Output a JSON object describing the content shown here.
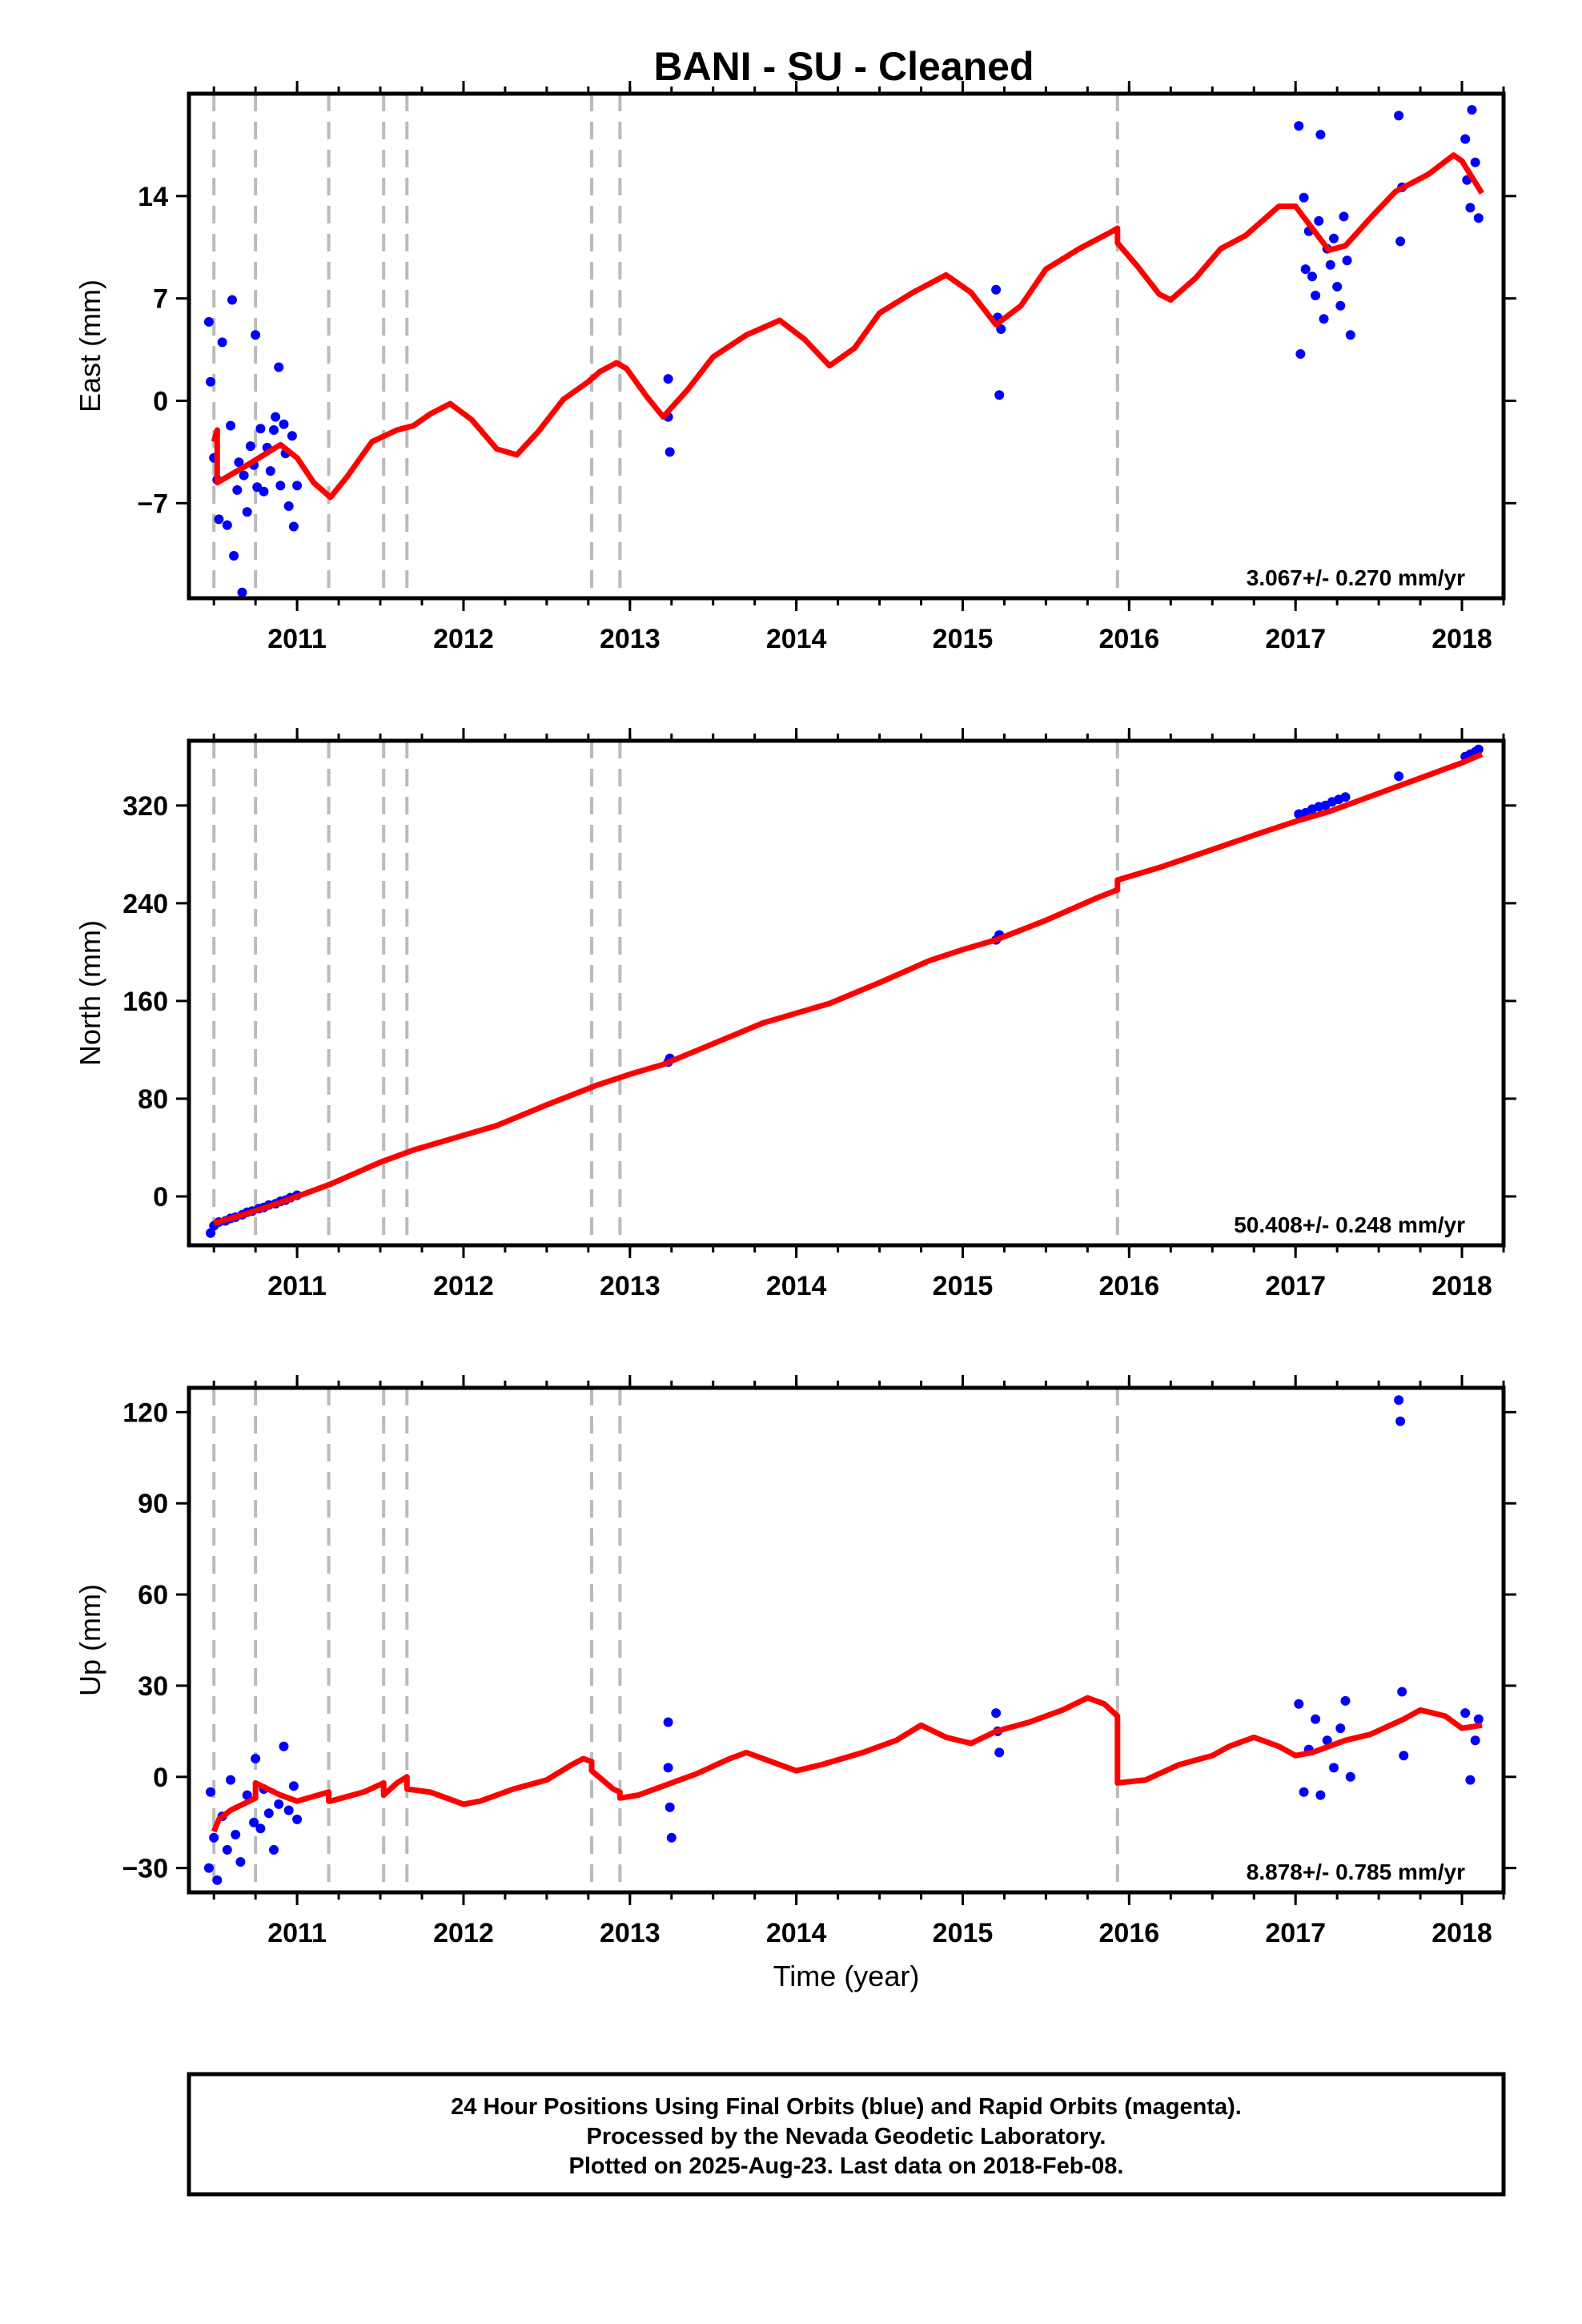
{
  "title": "BANI  - SU - Cleaned",
  "xlabel": "Time (year)",
  "footer": [
    "24 Hour Positions Using Final Orbits (blue) and Rapid Orbits (magenta).",
    "Processed by the Nevada Geodetic Laboratory.",
    "Plotted on 2025-Aug-23. Last data on 2018-Feb-08."
  ],
  "colors": {
    "final_orbits": "#0000ff",
    "model": "#ff0000",
    "offsets": "#bbbbbb",
    "frame": "#000000"
  },
  "chart_data": [
    {
      "type": "scatter",
      "name": "east",
      "ylabel": "East (mm)",
      "rate": "3.067+/- 0.270 mm/yr",
      "xlim": [
        2010.35,
        2018.25
      ],
      "ylim": [
        -13.5,
        21
      ],
      "yticks": [
        -7,
        0,
        7,
        14
      ],
      "xticks": [
        2011,
        2012,
        2013,
        2014,
        2015,
        2016,
        2017,
        2018
      ],
      "offset_lines": [
        2010.5,
        2010.75,
        2011.19,
        2011.52,
        2011.66,
        2012.77,
        2012.94,
        2015.93
      ],
      "model": [
        [
          2010.5,
          -2.8
        ],
        [
          2010.52,
          -2.0
        ],
        [
          2010.52,
          -5.6
        ],
        [
          2010.7,
          -4.4
        ],
        [
          2010.9,
          -3.0
        ],
        [
          2011.0,
          -3.9
        ],
        [
          2011.1,
          -5.6
        ],
        [
          2011.2,
          -6.6
        ],
        [
          2011.3,
          -5.2
        ],
        [
          2011.45,
          -2.8
        ],
        [
          2011.6,
          -2.0
        ],
        [
          2011.7,
          -1.7
        ],
        [
          2011.8,
          -0.9
        ],
        [
          2011.92,
          -0.2
        ],
        [
          2012.05,
          -1.3
        ],
        [
          2012.2,
          -3.3
        ],
        [
          2012.32,
          -3.7
        ],
        [
          2012.45,
          -2.1
        ],
        [
          2012.6,
          0.1
        ],
        [
          2012.75,
          1.3
        ],
        [
          2012.82,
          2.0
        ],
        [
          2012.92,
          2.6
        ],
        [
          2012.98,
          2.2
        ],
        [
          2013.1,
          0.3
        ],
        [
          2013.2,
          -1.1
        ],
        [
          2013.35,
          0.8
        ],
        [
          2013.5,
          3.0
        ],
        [
          2013.7,
          4.5
        ],
        [
          2013.9,
          5.5
        ],
        [
          2014.05,
          4.2
        ],
        [
          2014.2,
          2.4
        ],
        [
          2014.35,
          3.6
        ],
        [
          2014.5,
          6.0
        ],
        [
          2014.7,
          7.4
        ],
        [
          2014.9,
          8.6
        ],
        [
          2015.05,
          7.4
        ],
        [
          2015.2,
          5.2
        ],
        [
          2015.35,
          6.5
        ],
        [
          2015.5,
          9.0
        ],
        [
          2015.7,
          10.4
        ],
        [
          2015.9,
          11.6
        ],
        [
          2015.93,
          11.8
        ],
        [
          2015.93,
          10.8
        ],
        [
          2016.05,
          9.2
        ],
        [
          2016.18,
          7.3
        ],
        [
          2016.25,
          6.9
        ],
        [
          2016.4,
          8.4
        ],
        [
          2016.55,
          10.4
        ],
        [
          2016.7,
          11.3
        ],
        [
          2016.9,
          13.3
        ],
        [
          2017.0,
          13.3
        ],
        [
          2017.12,
          11.5
        ],
        [
          2017.2,
          10.3
        ],
        [
          2017.3,
          10.6
        ],
        [
          2017.45,
          12.5
        ],
        [
          2017.6,
          14.3
        ],
        [
          2017.8,
          15.5
        ],
        [
          2017.95,
          16.8
        ],
        [
          2018.0,
          16.4
        ],
        [
          2018.12,
          14.2
        ]
      ],
      "points": [
        [
          2010.47,
          5.4
        ],
        [
          2010.48,
          1.3
        ],
        [
          2010.5,
          -3.9
        ],
        [
          2010.52,
          -5.4
        ],
        [
          2010.53,
          -8.1
        ],
        [
          2010.55,
          4.0
        ],
        [
          2010.58,
          -8.5
        ],
        [
          2010.6,
          -1.7
        ],
        [
          2010.61,
          6.9
        ],
        [
          2010.62,
          -10.6
        ],
        [
          2010.64,
          -6.1
        ],
        [
          2010.65,
          -4.2
        ],
        [
          2010.67,
          -13.1
        ],
        [
          2010.68,
          -5.1
        ],
        [
          2010.7,
          -7.6
        ],
        [
          2010.72,
          -3.1
        ],
        [
          2010.74,
          -4.4
        ],
        [
          2010.75,
          4.5
        ],
        [
          2010.76,
          -5.9
        ],
        [
          2010.78,
          -1.9
        ],
        [
          2010.8,
          -6.2
        ],
        [
          2010.82,
          -3.2
        ],
        [
          2010.84,
          -4.8
        ],
        [
          2010.86,
          -2.0
        ],
        [
          2010.87,
          -1.1
        ],
        [
          2010.89,
          2.3
        ],
        [
          2010.9,
          -5.8
        ],
        [
          2010.92,
          -1.6
        ],
        [
          2010.93,
          -3.6
        ],
        [
          2010.95,
          -7.2
        ],
        [
          2010.97,
          -2.4
        ],
        [
          2010.98,
          -8.6
        ],
        [
          2011.0,
          -5.8
        ],
        [
          2013.23,
          1.5
        ],
        [
          2013.23,
          -1.1
        ],
        [
          2013.24,
          -3.5
        ],
        [
          2015.2,
          7.6
        ],
        [
          2015.21,
          5.7
        ],
        [
          2015.22,
          0.4
        ],
        [
          2015.23,
          4.9
        ],
        [
          2017.02,
          18.8
        ],
        [
          2017.03,
          3.2
        ],
        [
          2017.05,
          13.9
        ],
        [
          2017.06,
          9.0
        ],
        [
          2017.08,
          11.6
        ],
        [
          2017.1,
          8.5
        ],
        [
          2017.12,
          7.2
        ],
        [
          2017.14,
          12.3
        ],
        [
          2017.15,
          18.2
        ],
        [
          2017.17,
          5.6
        ],
        [
          2017.19,
          10.4
        ],
        [
          2017.21,
          9.3
        ],
        [
          2017.23,
          11.1
        ],
        [
          2017.25,
          7.8
        ],
        [
          2017.27,
          6.5
        ],
        [
          2017.29,
          12.6
        ],
        [
          2017.31,
          9.6
        ],
        [
          2017.33,
          4.5
        ],
        [
          2017.62,
          19.5
        ],
        [
          2017.63,
          10.9
        ],
        [
          2017.64,
          14.6
        ],
        [
          2018.02,
          17.9
        ],
        [
          2018.03,
          15.1
        ],
        [
          2018.05,
          13.2
        ],
        [
          2018.06,
          19.9
        ],
        [
          2018.08,
          16.3
        ],
        [
          2018.1,
          12.5
        ]
      ]
    },
    {
      "type": "scatter",
      "name": "north",
      "ylabel": "North (mm)",
      "rate": "50.408+/- 0.248 mm/yr",
      "xlim": [
        2010.35,
        2018.25
      ],
      "ylim": [
        -40,
        373
      ],
      "yticks": [
        0,
        80,
        160,
        240,
        320
      ],
      "xticks": [
        2011,
        2012,
        2013,
        2014,
        2015,
        2016,
        2017,
        2018
      ],
      "offset_lines": [
        2010.5,
        2010.75,
        2011.19,
        2011.52,
        2011.66,
        2012.77,
        2012.94,
        2015.93
      ],
      "model": [
        [
          2010.5,
          -22
        ],
        [
          2010.7,
          -14
        ],
        [
          2010.9,
          -5
        ],
        [
          2011.0,
          0
        ],
        [
          2011.2,
          10
        ],
        [
          2011.5,
          28
        ],
        [
          2011.7,
          38
        ],
        [
          2012.0,
          50
        ],
        [
          2012.2,
          58
        ],
        [
          2012.5,
          75
        ],
        [
          2012.8,
          91
        ],
        [
          2013.0,
          100
        ],
        [
          2013.2,
          108
        ],
        [
          2013.5,
          125
        ],
        [
          2013.8,
          142
        ],
        [
          2014.0,
          150
        ],
        [
          2014.2,
          158
        ],
        [
          2014.5,
          175
        ],
        [
          2014.8,
          193
        ],
        [
          2015.0,
          202
        ],
        [
          2015.2,
          210
        ],
        [
          2015.5,
          226
        ],
        [
          2015.8,
          244
        ],
        [
          2015.93,
          251
        ],
        [
          2015.93,
          259
        ],
        [
          2016.2,
          270
        ],
        [
          2016.5,
          284
        ],
        [
          2016.8,
          298
        ],
        [
          2017.0,
          307
        ],
        [
          2017.2,
          315
        ],
        [
          2017.5,
          330
        ],
        [
          2017.8,
          345
        ],
        [
          2018.0,
          355
        ],
        [
          2018.12,
          362
        ]
      ],
      "points": [
        [
          2010.48,
          -30
        ],
        [
          2010.5,
          -24
        ],
        [
          2010.53,
          -21
        ],
        [
          2010.57,
          -20
        ],
        [
          2010.6,
          -18
        ],
        [
          2010.63,
          -17
        ],
        [
          2010.67,
          -15
        ],
        [
          2010.7,
          -13
        ],
        [
          2010.73,
          -12
        ],
        [
          2010.77,
          -10
        ],
        [
          2010.8,
          -9
        ],
        [
          2010.83,
          -7
        ],
        [
          2010.87,
          -6
        ],
        [
          2010.9,
          -4
        ],
        [
          2010.93,
          -3
        ],
        [
          2010.96,
          -1
        ],
        [
          2011.0,
          1
        ],
        [
          2013.23,
          110
        ],
        [
          2013.24,
          113
        ],
        [
          2015.2,
          210
        ],
        [
          2015.22,
          214
        ],
        [
          2017.02,
          313
        ],
        [
          2017.06,
          314
        ],
        [
          2017.1,
          317
        ],
        [
          2017.14,
          319
        ],
        [
          2017.18,
          320
        ],
        [
          2017.22,
          323
        ],
        [
          2017.26,
          325
        ],
        [
          2017.3,
          327
        ],
        [
          2017.62,
          344
        ],
        [
          2018.02,
          360
        ],
        [
          2018.05,
          362
        ],
        [
          2018.08,
          364
        ],
        [
          2018.1,
          366
        ]
      ]
    },
    {
      "type": "scatter",
      "name": "up",
      "ylabel": "Up (mm)",
      "rate": "8.878+/- 0.785 mm/yr",
      "xlim": [
        2010.35,
        2018.25
      ],
      "ylim": [
        -38,
        128
      ],
      "yticks": [
        -30,
        0,
        30,
        60,
        90,
        120
      ],
      "xticks": [
        2011,
        2012,
        2013,
        2014,
        2015,
        2016,
        2017,
        2018
      ],
      "offset_lines": [
        2010.5,
        2010.75,
        2011.19,
        2011.52,
        2011.66,
        2012.77,
        2012.94,
        2015.93
      ],
      "model": [
        [
          2010.5,
          -18
        ],
        [
          2010.53,
          -14
        ],
        [
          2010.6,
          -11
        ],
        [
          2010.75,
          -7
        ],
        [
          2010.75,
          -2
        ],
        [
          2010.9,
          -6
        ],
        [
          2011.0,
          -8
        ],
        [
          2011.19,
          -5
        ],
        [
          2011.19,
          -8
        ],
        [
          2011.2,
          -8
        ],
        [
          2011.4,
          -5
        ],
        [
          2011.52,
          -2
        ],
        [
          2011.52,
          -6
        ],
        [
          2011.6,
          -2
        ],
        [
          2011.66,
          0
        ],
        [
          2011.66,
          -4
        ],
        [
          2011.8,
          -5
        ],
        [
          2012.0,
          -9
        ],
        [
          2012.1,
          -8
        ],
        [
          2012.3,
          -4
        ],
        [
          2012.5,
          -1
        ],
        [
          2012.65,
          4
        ],
        [
          2012.72,
          6
        ],
        [
          2012.77,
          5
        ],
        [
          2012.77,
          2
        ],
        [
          2012.9,
          -4
        ],
        [
          2012.94,
          -5
        ],
        [
          2012.94,
          -7
        ],
        [
          2013.05,
          -6
        ],
        [
          2013.2,
          -3
        ],
        [
          2013.4,
          1
        ],
        [
          2013.6,
          6
        ],
        [
          2013.7,
          8
        ],
        [
          2013.85,
          5
        ],
        [
          2014.0,
          2
        ],
        [
          2014.15,
          4
        ],
        [
          2014.4,
          8
        ],
        [
          2014.6,
          12
        ],
        [
          2014.75,
          17
        ],
        [
          2014.9,
          13
        ],
        [
          2015.05,
          11
        ],
        [
          2015.2,
          15
        ],
        [
          2015.4,
          18
        ],
        [
          2015.6,
          22
        ],
        [
          2015.75,
          26
        ],
        [
          2015.85,
          24
        ],
        [
          2015.93,
          20
        ],
        [
          2015.93,
          -2
        ],
        [
          2016.1,
          -1
        ],
        [
          2016.3,
          4
        ],
        [
          2016.5,
          7
        ],
        [
          2016.6,
          10
        ],
        [
          2016.75,
          13
        ],
        [
          2016.9,
          10
        ],
        [
          2017.0,
          7
        ],
        [
          2017.1,
          8
        ],
        [
          2017.3,
          12
        ],
        [
          2017.45,
          14
        ],
        [
          2017.65,
          19
        ],
        [
          2017.75,
          22
        ],
        [
          2017.9,
          20
        ],
        [
          2018.0,
          16
        ],
        [
          2018.12,
          17
        ]
      ],
      "points": [
        [
          2010.47,
          -30
        ],
        [
          2010.48,
          -5
        ],
        [
          2010.5,
          -20
        ],
        [
          2010.52,
          -34
        ],
        [
          2010.55,
          -13
        ],
        [
          2010.58,
          -24
        ],
        [
          2010.6,
          -1
        ],
        [
          2010.63,
          -19
        ],
        [
          2010.66,
          -28
        ],
        [
          2010.7,
          -6
        ],
        [
          2010.74,
          -15
        ],
        [
          2010.75,
          6
        ],
        [
          2010.78,
          -17
        ],
        [
          2010.8,
          -4
        ],
        [
          2010.83,
          -12
        ],
        [
          2010.86,
          -24
        ],
        [
          2010.89,
          -9
        ],
        [
          2010.92,
          10
        ],
        [
          2010.95,
          -11
        ],
        [
          2010.98,
          -3
        ],
        [
          2011.0,
          -14
        ],
        [
          2013.23,
          18
        ],
        [
          2013.23,
          3
        ],
        [
          2013.24,
          -10
        ],
        [
          2013.25,
          -20
        ],
        [
          2015.2,
          21
        ],
        [
          2015.21,
          15
        ],
        [
          2015.22,
          8
        ],
        [
          2017.02,
          24
        ],
        [
          2017.05,
          -5
        ],
        [
          2017.08,
          9
        ],
        [
          2017.12,
          19
        ],
        [
          2017.15,
          -6
        ],
        [
          2017.19,
          12
        ],
        [
          2017.23,
          3
        ],
        [
          2017.27,
          16
        ],
        [
          2017.3,
          25
        ],
        [
          2017.33,
          0
        ],
        [
          2017.62,
          124
        ],
        [
          2017.63,
          117
        ],
        [
          2017.64,
          28
        ],
        [
          2017.65,
          7
        ],
        [
          2018.02,
          21
        ],
        [
          2018.05,
          -1
        ],
        [
          2018.08,
          12
        ],
        [
          2018.1,
          19
        ]
      ]
    }
  ]
}
